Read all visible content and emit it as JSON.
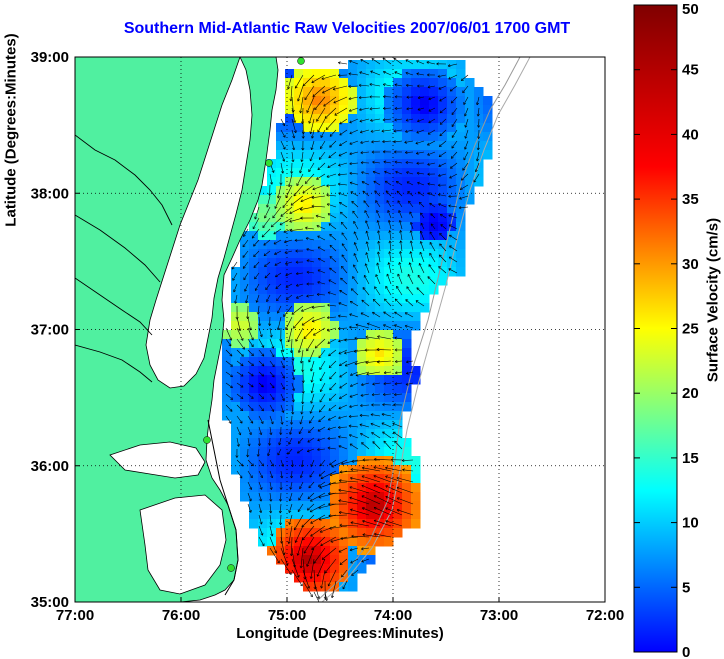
{
  "title": "Southern Mid-Atlantic Raw Velocities 2007/06/01 1700 GMT",
  "x_axis": {
    "label": "Longitude (Degrees:Minutes)",
    "ticks": [
      "77:00",
      "76:00",
      "75:00",
      "74:00",
      "73:00",
      "72:00"
    ]
  },
  "y_axis": {
    "label": "Latitude (Degrees:Minutes)",
    "ticks": [
      "39:00",
      "38:00",
      "37:00",
      "36:00",
      "35:00"
    ]
  },
  "colorbar": {
    "label": "Surface Velocity (cm/s)",
    "ticks": [
      "50",
      "45",
      "40",
      "35",
      "30",
      "25",
      "20",
      "15",
      "10",
      "5",
      "0"
    ],
    "min": 0,
    "max": 50
  },
  "colors": {
    "land": "#50f0a0",
    "title": "#0000ff",
    "grid": "#000000"
  },
  "map": {
    "lon_range": [
      -77,
      -72
    ],
    "lat_range": [
      35,
      39
    ],
    "grid_lines": "dotted"
  }
}
